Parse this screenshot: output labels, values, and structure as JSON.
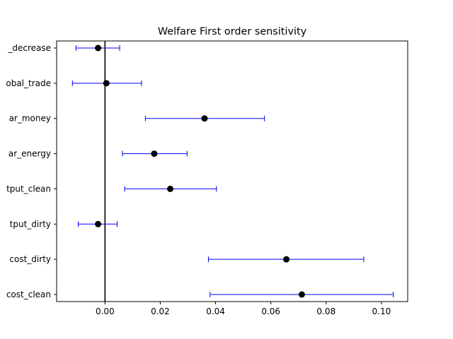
{
  "chart_data": {
    "type": "scatter",
    "title": "Welfare First order sensitivity",
    "xlabel": "",
    "ylabel": "",
    "xlim": [
      -0.0175,
      0.1095
    ],
    "xticks": [
      0.0,
      0.02,
      0.04,
      0.06,
      0.08,
      0.1
    ],
    "xtick_labels": [
      "0.00",
      "0.02",
      "0.04",
      "0.06",
      "0.08",
      "0.10"
    ],
    "grid": false,
    "reference_line_x": 0,
    "point_color": "#000000",
    "errorbar_color": "#0000ff",
    "categories": [
      "…_decrease",
      "…obal_trade",
      "…ar_money",
      "…ar_energy",
      "…tput_clean",
      "…tput_dirty",
      "…cost_dirty",
      "…cost_clean"
    ],
    "tick_labels_visible": [
      "_decrease",
      "obal_trade",
      "ar_money",
      "ar_energy",
      "tput_clean",
      "tput_dirty",
      "cost_dirty",
      "cost_clean"
    ],
    "points": [
      {
        "value": -0.0025,
        "low": -0.0105,
        "high": 0.0053
      },
      {
        "value": 0.0005,
        "low": -0.0118,
        "high": 0.0132
      },
      {
        "value": 0.036,
        "low": 0.0146,
        "high": 0.0577
      },
      {
        "value": 0.0178,
        "low": 0.0063,
        "high": 0.0297
      },
      {
        "value": 0.0236,
        "low": 0.0071,
        "high": 0.0403
      },
      {
        "value": -0.0025,
        "low": -0.0097,
        "high": 0.0044
      },
      {
        "value": 0.0656,
        "low": 0.0374,
        "high": 0.0936
      },
      {
        "value": 0.0712,
        "low": 0.038,
        "high": 0.1043
      }
    ]
  }
}
